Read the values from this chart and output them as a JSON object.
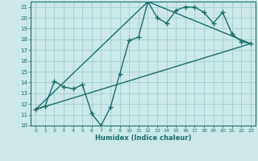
{
  "bg_color": "#cce8e8",
  "grid_color": "#9ecfcf",
  "line_color": "#1a6e6e",
  "xlabel": "Humidex (Indice chaleur)",
  "xlim": [
    -0.5,
    23.5
  ],
  "ylim": [
    10,
    21.5
  ],
  "yticks": [
    10,
    11,
    12,
    13,
    14,
    15,
    16,
    17,
    18,
    19,
    20,
    21
  ],
  "xticks": [
    0,
    1,
    2,
    3,
    4,
    5,
    6,
    7,
    8,
    9,
    10,
    11,
    12,
    13,
    14,
    15,
    16,
    17,
    18,
    19,
    20,
    21,
    22,
    23
  ],
  "line1_x": [
    0,
    1,
    2,
    3,
    4,
    5,
    6,
    7,
    8,
    9,
    10,
    11,
    12,
    13,
    14,
    15,
    16,
    17,
    18,
    19,
    20,
    21,
    22,
    23
  ],
  "line1_y": [
    11.5,
    11.8,
    14.1,
    13.6,
    13.4,
    13.8,
    11.1,
    10.0,
    11.7,
    14.8,
    17.9,
    18.2,
    21.5,
    20.0,
    19.5,
    20.7,
    21.0,
    21.0,
    20.5,
    19.5,
    20.5,
    18.5,
    17.8,
    17.6
  ],
  "line2_x": [
    0,
    23
  ],
  "line2_y": [
    11.5,
    17.6
  ],
  "line3_x": [
    0,
    12,
    23
  ],
  "line3_y": [
    11.5,
    21.5,
    17.6
  ],
  "marker_size": 3.5,
  "line_width": 1.0
}
